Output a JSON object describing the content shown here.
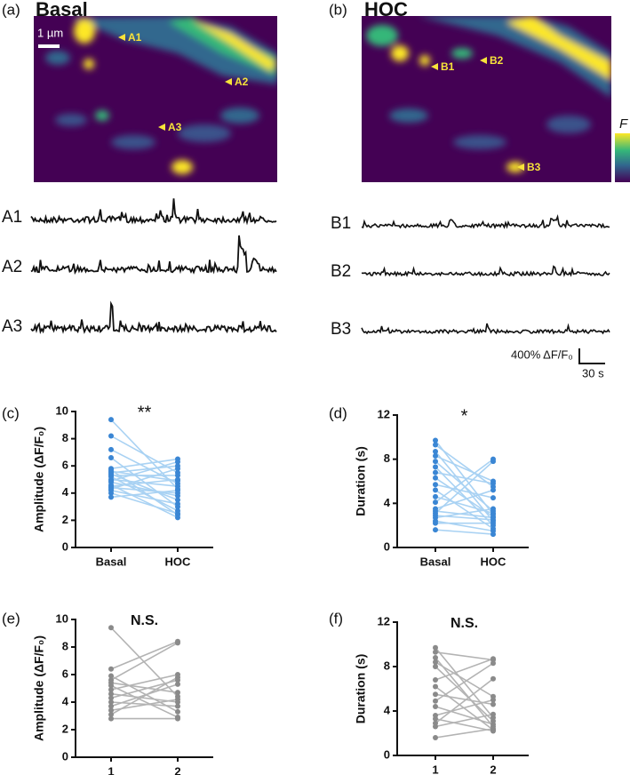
{
  "images": [
    {
      "panel": "(a)",
      "title": "Basal",
      "scale_label": "1 µm",
      "markers": [
        "A1",
        "A2",
        "A3"
      ]
    },
    {
      "panel": "(b)",
      "title": "HOC",
      "markers": [
        "B1",
        "B2",
        "B3"
      ],
      "colorbar_label": "F"
    }
  ],
  "traces": {
    "labels_a": [
      "A1",
      "A2",
      "A3"
    ],
    "labels_b": [
      "B1",
      "B2",
      "B3"
    ],
    "scale_y": "400% ΔF/F₀",
    "scale_x": "30 s"
  },
  "chart_data": [
    {
      "type": "paired",
      "panel": "(c)",
      "ylabel": "Amplitude (ΔF/F₀)",
      "annotation": "**",
      "categories": [
        "Basal",
        "HOC"
      ],
      "line_color": "#a9d2f3",
      "color": "#3a86d4",
      "ylim": [
        0,
        10
      ],
      "yticks": [
        0,
        2,
        4,
        6,
        8,
        10
      ],
      "pairs": [
        [
          9.4,
          4.3
        ],
        [
          8.2,
          5.5
        ],
        [
          7.2,
          4.7
        ],
        [
          6.6,
          3.0
        ],
        [
          5.8,
          6.5
        ],
        [
          5.7,
          2.4
        ],
        [
          5.6,
          4.9
        ],
        [
          5.5,
          6.0
        ],
        [
          5.4,
          3.5
        ],
        [
          5.3,
          5.3
        ],
        [
          5.2,
          2.7
        ],
        [
          5.0,
          4.5
        ],
        [
          4.9,
          6.3
        ],
        [
          4.8,
          3.8
        ],
        [
          4.6,
          2.2
        ],
        [
          4.5,
          5.0
        ],
        [
          4.4,
          4.0
        ],
        [
          4.3,
          5.8
        ],
        [
          4.2,
          3.2
        ],
        [
          4.0,
          2.5
        ],
        [
          3.7,
          4.2
        ]
      ]
    },
    {
      "type": "paired",
      "panel": "(d)",
      "ylabel": "Duration (s)",
      "annotation": "*",
      "categories": [
        "Basal",
        "HOC"
      ],
      "line_color": "#a9d2f3",
      "color": "#3a86d4",
      "ylim": [
        0,
        12
      ],
      "yticks": [
        0,
        4,
        8,
        12
      ],
      "pairs": [
        [
          9.7,
          3.0
        ],
        [
          9.3,
          5.5
        ],
        [
          8.7,
          2.4
        ],
        [
          8.3,
          6.0
        ],
        [
          7.8,
          3.3
        ],
        [
          7.3,
          2.0
        ],
        [
          6.8,
          5.8
        ],
        [
          6.3,
          2.8
        ],
        [
          5.7,
          4.5
        ],
        [
          5.2,
          1.7
        ],
        [
          4.6,
          3.1
        ],
        [
          4.1,
          8.0
        ],
        [
          3.5,
          5.2
        ],
        [
          3.3,
          2.7
        ],
        [
          3.1,
          7.8
        ],
        [
          2.9,
          2.5
        ],
        [
          2.7,
          3.5
        ],
        [
          2.4,
          1.5
        ],
        [
          2.2,
          2.2
        ],
        [
          1.6,
          1.2
        ]
      ]
    },
    {
      "type": "paired",
      "panel": "(e)",
      "ylabel": "Amplitude (ΔF/F₀)",
      "annotation": "N.S.",
      "categories": [
        "1",
        "2"
      ],
      "line_color": "#b3b3b3",
      "color": "#8a8a8a",
      "ylim": [
        0,
        10
      ],
      "yticks": [
        0,
        2,
        4,
        6,
        8,
        10
      ],
      "pairs": [
        [
          9.4,
          4.4
        ],
        [
          6.4,
          8.4
        ],
        [
          5.9,
          3.3
        ],
        [
          5.6,
          8.3
        ],
        [
          5.4,
          4.7
        ],
        [
          5.2,
          2.9
        ],
        [
          4.9,
          6.0
        ],
        [
          4.6,
          4.0
        ],
        [
          4.3,
          5.6
        ],
        [
          4.0,
          3.7
        ],
        [
          3.7,
          5.3
        ],
        [
          3.4,
          4.2
        ],
        [
          3.1,
          5.8
        ],
        [
          2.8,
          2.8
        ]
      ]
    },
    {
      "type": "paired",
      "panel": "(f)",
      "ylabel": "Duration (s)",
      "annotation": "N.S.",
      "categories": [
        "1",
        "2"
      ],
      "line_color": "#b3b3b3",
      "color": "#8a8a8a",
      "ylim": [
        0,
        12
      ],
      "yticks": [
        0,
        4,
        8,
        12
      ],
      "pairs": [
        [
          9.7,
          3.4
        ],
        [
          9.3,
          8.6
        ],
        [
          8.8,
          2.6
        ],
        [
          8.4,
          5.3
        ],
        [
          8.0,
          3.1
        ],
        [
          6.8,
          8.7
        ],
        [
          6.2,
          2.3
        ],
        [
          5.5,
          4.6
        ],
        [
          4.9,
          8.3
        ],
        [
          4.4,
          2.8
        ],
        [
          3.6,
          5.0
        ],
        [
          3.3,
          2.2
        ],
        [
          2.9,
          6.9
        ],
        [
          2.6,
          3.7
        ],
        [
          1.6,
          2.4
        ]
      ]
    }
  ]
}
